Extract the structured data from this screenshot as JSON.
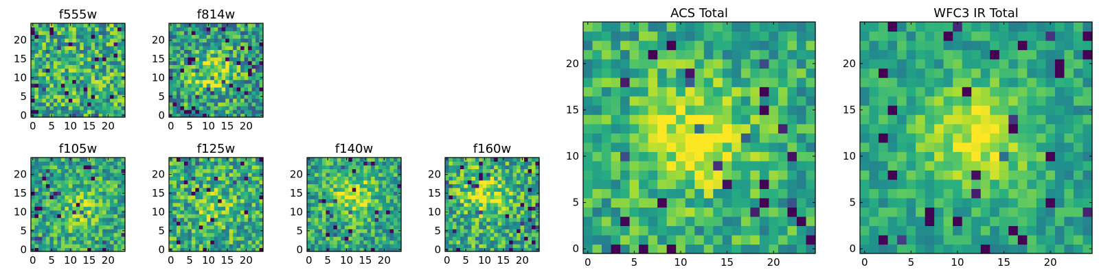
{
  "chart_data": [
    {
      "type": "heatmap",
      "title": "f555w",
      "grid_size": 25,
      "colormap": "viridis",
      "xticks": [
        "0",
        "5",
        "10",
        "15",
        "20"
      ],
      "yticks": [
        "0",
        "5",
        "10",
        "15",
        "20"
      ],
      "xlim": [
        0,
        24
      ],
      "ylim": [
        0,
        24
      ],
      "peak": [
        12,
        12
      ],
      "peak_strength": 0.05,
      "noise": 0.3,
      "base": 0.62,
      "seed": 11
    },
    {
      "type": "heatmap",
      "title": "f814w",
      "grid_size": 25,
      "colormap": "viridis",
      "xticks": [
        "0",
        "5",
        "10",
        "15",
        "20"
      ],
      "yticks": [
        "0",
        "5",
        "10",
        "15",
        "20"
      ],
      "xlim": [
        0,
        24
      ],
      "ylim": [
        0,
        24
      ],
      "peak": [
        11,
        11
      ],
      "peak_strength": 0.35,
      "noise": 0.3,
      "base": 0.55,
      "seed": 23
    },
    {
      "type": "heatmap",
      "title": "f105w",
      "grid_size": 25,
      "colormap": "viridis",
      "xticks": [
        "0",
        "5",
        "10",
        "15",
        "20"
      ],
      "yticks": [
        "0",
        "5",
        "10",
        "15",
        "20"
      ],
      "xlim": [
        0,
        24
      ],
      "ylim": [
        0,
        24
      ],
      "peak": [
        13,
        11
      ],
      "peak_strength": 0.2,
      "noise": 0.25,
      "base": 0.6,
      "seed": 37
    },
    {
      "type": "heatmap",
      "title": "f125w",
      "grid_size": 25,
      "colormap": "viridis",
      "xticks": [
        "0",
        "5",
        "10",
        "15",
        "20"
      ],
      "yticks": [
        "0",
        "5",
        "10",
        "15",
        "20"
      ],
      "xlim": [
        0,
        24
      ],
      "ylim": [
        0,
        24
      ],
      "peak": [
        12,
        11
      ],
      "peak_strength": 0.15,
      "noise": 0.27,
      "base": 0.62,
      "seed": 41
    },
    {
      "type": "heatmap",
      "title": "f140w",
      "grid_size": 25,
      "colormap": "viridis",
      "xticks": [
        "0",
        "5",
        "10",
        "15",
        "20"
      ],
      "yticks": [
        "0",
        "5",
        "10",
        "15",
        "20"
      ],
      "xlim": [
        0,
        24
      ],
      "ylim": [
        0,
        24
      ],
      "peak": [
        12,
        14
      ],
      "peak_strength": 0.3,
      "noise": 0.25,
      "base": 0.6,
      "seed": 53
    },
    {
      "type": "heatmap",
      "title": "f160w",
      "grid_size": 25,
      "colormap": "viridis",
      "xticks": [
        "0",
        "5",
        "10",
        "15",
        "20"
      ],
      "yticks": [
        "0",
        "5",
        "10",
        "15",
        "20"
      ],
      "xlim": [
        0,
        24
      ],
      "ylim": [
        0,
        24
      ],
      "peak": [
        10,
        15
      ],
      "peak_strength": 0.3,
      "noise": 0.27,
      "base": 0.62,
      "seed": 67
    },
    {
      "type": "heatmap",
      "title": "ACS Total",
      "grid_size": 25,
      "colormap": "viridis",
      "xticks": [
        "0",
        "5",
        "10",
        "15",
        "20"
      ],
      "yticks": [
        "0",
        "5",
        "10",
        "15",
        "20"
      ],
      "xlim": [
        0,
        24
      ],
      "ylim": [
        0,
        24
      ],
      "peak": [
        11,
        12
      ],
      "peak_strength": 0.35,
      "noise": 0.22,
      "base": 0.62,
      "seed": 79
    },
    {
      "type": "heatmap",
      "title": "WFC3 IR Total",
      "grid_size": 25,
      "colormap": "viridis",
      "xticks": [
        "0",
        "5",
        "10",
        "15",
        "20"
      ],
      "yticks": [
        "0",
        "5",
        "10",
        "15",
        "20"
      ],
      "xlim": [
        0,
        24
      ],
      "ylim": [
        0,
        24
      ],
      "peak": [
        12,
        12
      ],
      "peak_strength": 0.38,
      "noise": 0.16,
      "base": 0.58,
      "seed": 97
    }
  ]
}
